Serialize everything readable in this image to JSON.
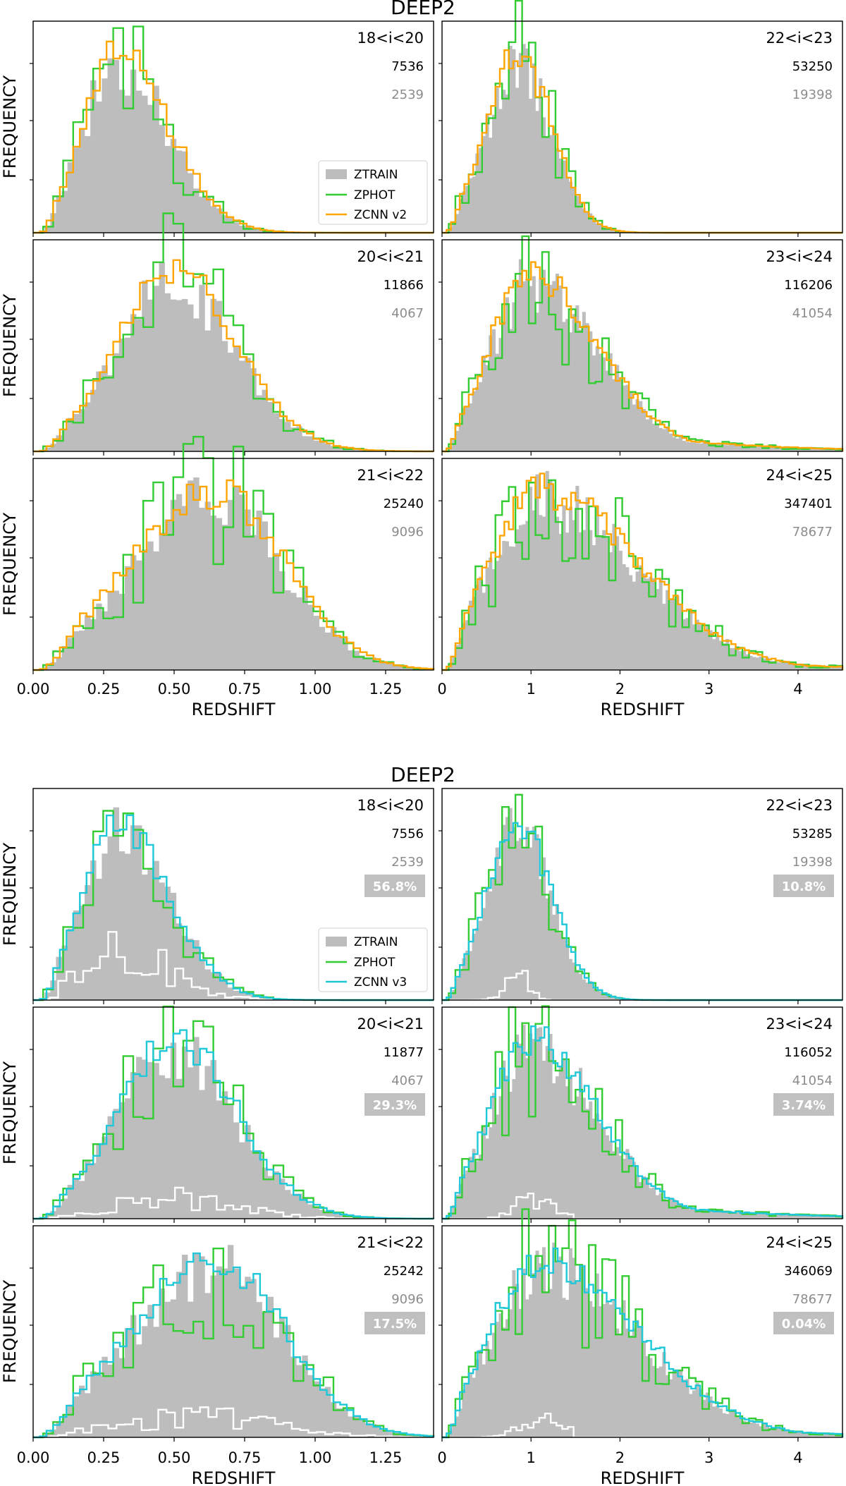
{
  "chart_data": [
    {
      "type": "histogram",
      "title": "DEEP2",
      "xlabel": "REDSHIFT",
      "ylabel": "FREQUENCY",
      "legend": {
        "placement": "right of left column, row 1",
        "entries": [
          "ZTRAIN",
          "ZPHOT",
          "ZCNN v2"
        ]
      },
      "left_xlim": [
        0,
        1.42
      ],
      "left_xticks": [
        "0.00",
        "0.25",
        "0.50",
        "0.75",
        "1.00",
        "1.25"
      ],
      "right_xlim": [
        0,
        4.5
      ],
      "right_xticks": [
        "0",
        "1",
        "2",
        "3",
        "4"
      ],
      "panels": [
        {
          "range": "18<i<20",
          "n": "7536",
          "m": "2539",
          "pct": null
        },
        {
          "range": "22<i<23",
          "n": "53250",
          "m": "19398",
          "pct": null
        },
        {
          "range": "20<i<21",
          "n": "11866",
          "m": "4067",
          "pct": null
        },
        {
          "range": "23<i<24",
          "n": "116206",
          "m": "41054",
          "pct": null
        },
        {
          "range": "21<i<22",
          "n": "25240",
          "m": "9096",
          "pct": null
        },
        {
          "range": "24<i<25",
          "n": "347401",
          "m": "78677",
          "pct": null
        }
      ]
    },
    {
      "type": "histogram",
      "title": "DEEP2",
      "xlabel": "REDSHIFT",
      "ylabel": "FREQUENCY",
      "legend": {
        "placement": "right of left column, row 1",
        "entries": [
          "ZTRAIN",
          "ZPHOT",
          "ZCNN v3"
        ]
      },
      "left_xlim": [
        0,
        1.42
      ],
      "left_xticks": [
        "0.00",
        "0.25",
        "0.50",
        "0.75",
        "1.00",
        "1.25"
      ],
      "right_xlim": [
        0,
        4.5
      ],
      "right_xticks": [
        "0",
        "1",
        "2",
        "3",
        "4"
      ],
      "panels": [
        {
          "range": "18<i<20",
          "n": "7556",
          "m": "2539",
          "pct": "56.8%"
        },
        {
          "range": "22<i<23",
          "n": "53285",
          "m": "19398",
          "pct": "10.8%"
        },
        {
          "range": "20<i<21",
          "n": "11877",
          "m": "4067",
          "pct": "29.3%"
        },
        {
          "range": "23<i<24",
          "n": "116052",
          "m": "41054",
          "pct": "3.74%"
        },
        {
          "range": "21<i<22",
          "n": "25242",
          "m": "9096",
          "pct": "17.5%"
        },
        {
          "range": "24<i<25",
          "n": "346069",
          "m": "78677",
          "pct": "0.04%"
        }
      ]
    }
  ],
  "colors": {
    "ztrain": "#bdbdbd",
    "zphot": "#33cc33",
    "zcnn_v2": "#ffa500",
    "zcnn_v3": "#1ec8d8",
    "residual": "#ffffff",
    "pct_box": "#c0c0c0"
  }
}
